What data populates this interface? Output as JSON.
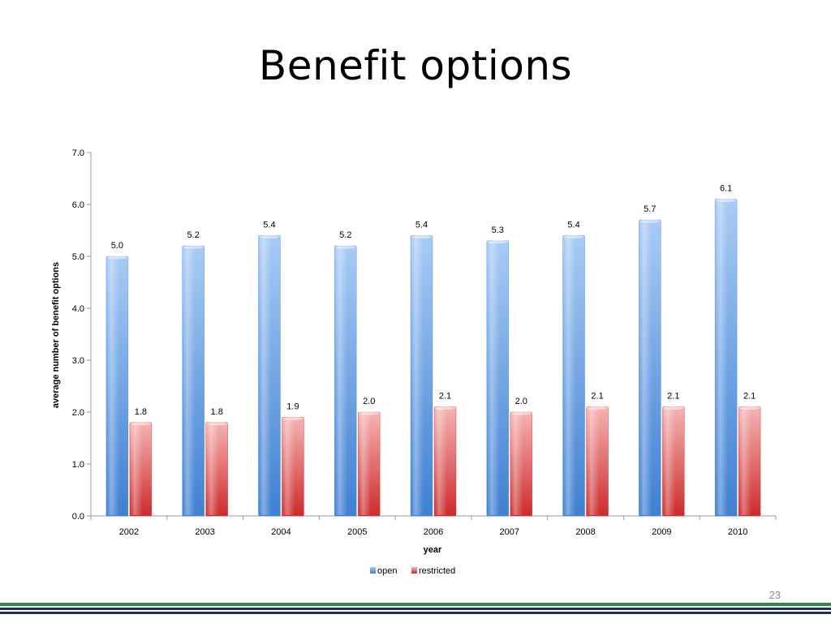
{
  "slide": {
    "title": "Benefit options",
    "page_number": "23"
  },
  "colors": {
    "open_light": "#a8cbf5",
    "open_dark": "#3f80d2",
    "restricted_light": "#f6b3b3",
    "restricted_dark": "#cc2c2c",
    "axis": "#9a9a9a",
    "footer_green": "#2f8a3d",
    "footer_navy": "#1c2f5e"
  },
  "chart_data": {
    "type": "bar",
    "categories": [
      "2002",
      "2003",
      "2004",
      "2005",
      "2006",
      "2007",
      "2008",
      "2009",
      "2010"
    ],
    "series": [
      {
        "name": "open",
        "values": [
          5.0,
          5.2,
          5.4,
          5.2,
          5.4,
          5.3,
          5.4,
          5.7,
          6.1
        ]
      },
      {
        "name": "restricted",
        "values": [
          1.8,
          1.8,
          1.9,
          2.0,
          2.1,
          2.0,
          2.1,
          2.1,
          2.1
        ]
      }
    ],
    "xlabel": "year",
    "ylabel": "average number of benefit options",
    "ylim": [
      0,
      7
    ],
    "yticks": [
      "0.0",
      "1.0",
      "2.0",
      "3.0",
      "4.0",
      "5.0",
      "6.0",
      "7.0"
    ],
    "grid": false,
    "legend": "bottom"
  }
}
